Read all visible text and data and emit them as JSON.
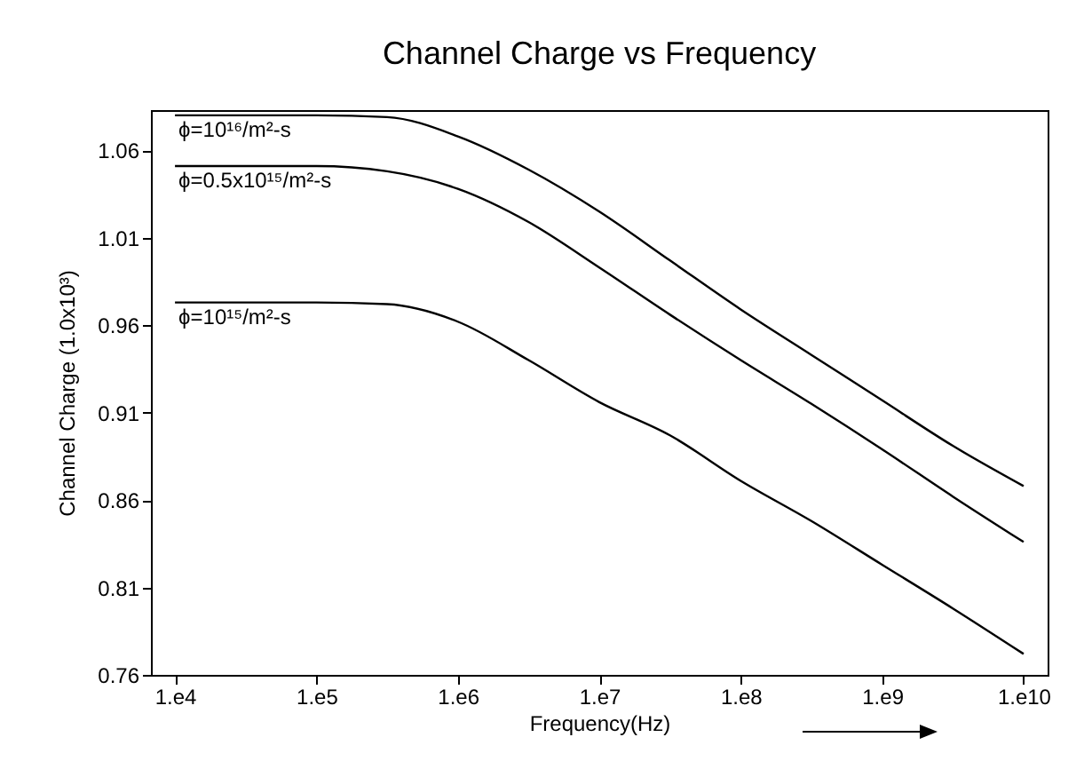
{
  "chart_data": {
    "type": "line",
    "title": "Channel Charge vs Frequency",
    "xlabel": "Frequency(Hz)",
    "ylabel": "Channel Charge (1.0x10³)",
    "categories": [
      "1.e4",
      null,
      "1.e5",
      null,
      "1.e6",
      null,
      "1.e7",
      null,
      "1.e8",
      null,
      "1.e9",
      null,
      "1.e10"
    ],
    "series": [
      {
        "name": "ϕ=10¹⁶/m²-s",
        "color": "#000000",
        "values": [
          1.08,
          1.08,
          1.08,
          1.079,
          1.068,
          1.049,
          1.025,
          0.997,
          0.969,
          0.943,
          0.917,
          0.891,
          0.868
        ]
      },
      {
        "name": "ϕ=0.5x10¹⁵/m²-s",
        "color": "#000000",
        "values": [
          1.051,
          1.051,
          1.051,
          1.048,
          1.038,
          1.019,
          0.993,
          0.966,
          0.94,
          0.915,
          0.889,
          0.862,
          0.836
        ]
      },
      {
        "name": "ϕ=10¹⁵/m²-s",
        "color": "#000000",
        "values": [
          0.973,
          0.973,
          0.973,
          0.972,
          0.962,
          0.94,
          0.916,
          0.897,
          0.871,
          0.848,
          0.823,
          0.798,
          0.772
        ]
      }
    ],
    "ylim": [
      0.76,
      1.083
    ],
    "yticks": [
      0.76,
      0.81,
      0.86,
      0.91,
      0.96,
      1.01,
      1.06
    ],
    "grid": false,
    "legend": false,
    "marker": "none",
    "line_style": "solid"
  }
}
